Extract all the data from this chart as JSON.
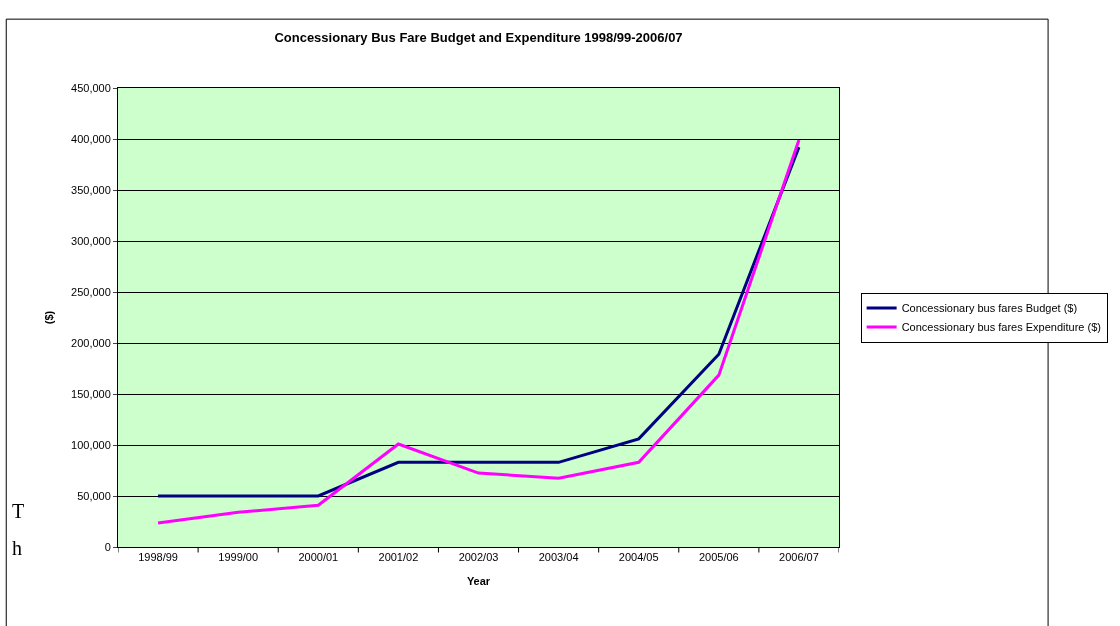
{
  "chart_data": {
    "type": "line",
    "title": "Concessionary Bus Fare Budget and Expenditure 1998/99-2006/07",
    "xlabel": "Year",
    "ylabel": "($)",
    "categories": [
      "1998/99",
      "1999/00",
      "2000/01",
      "2001/02",
      "2002/03",
      "2003/04",
      "2004/05",
      "2005/06",
      "2006/07"
    ],
    "series": [
      {
        "name": "Concessionary bus fares Budget ($)",
        "color": "#000080",
        "values": [
          50000,
          50000,
          50000,
          83000,
          83000,
          83000,
          106000,
          189000,
          392000
        ]
      },
      {
        "name": "Concessionary bus fares Expenditure ($)",
        "color": "#ff00ff",
        "values": [
          23500,
          34000,
          41000,
          101000,
          72500,
          67500,
          83000,
          168500,
          399000
        ]
      }
    ],
    "ylim": [
      0,
      450000
    ],
    "yticks": [
      {
        "value": 0,
        "label": "0"
      },
      {
        "value": 50000,
        "label": "50,000"
      },
      {
        "value": 100000,
        "label": "100,000"
      },
      {
        "value": 150000,
        "label": "150,000"
      },
      {
        "value": 200000,
        "label": "200,000"
      },
      {
        "value": 250000,
        "label": "250,000"
      },
      {
        "value": 300000,
        "label": "300,000"
      },
      {
        "value": 350000,
        "label": "350,000"
      },
      {
        "value": 400000,
        "label": "400,000"
      },
      {
        "value": 450000,
        "label": "450,000"
      }
    ],
    "grid": "y",
    "legend": "right",
    "marker": "none",
    "line_style": "solid",
    "annotations": [
      "T",
      "h"
    ]
  }
}
